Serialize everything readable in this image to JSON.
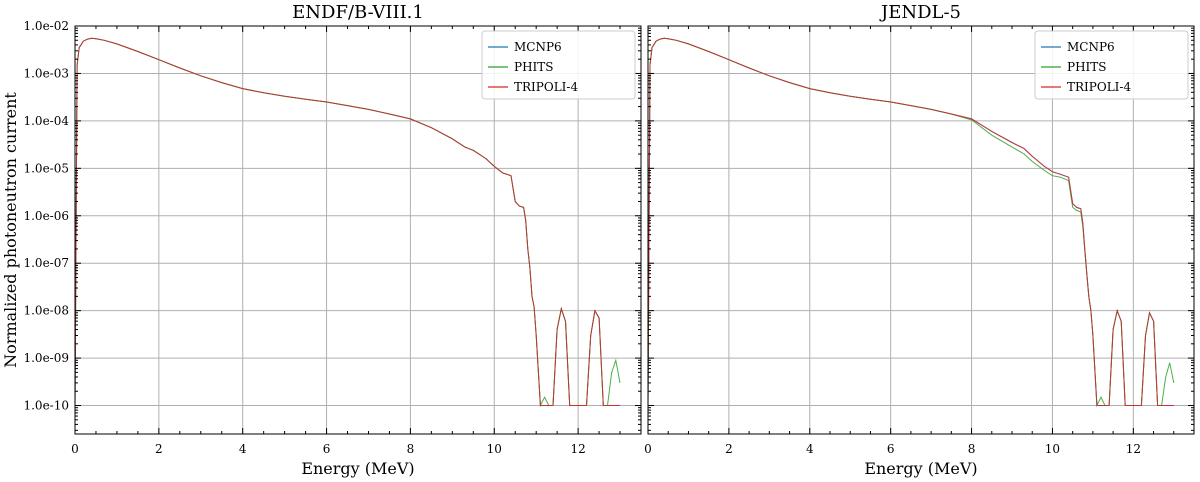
{
  "chart_data": [
    {
      "type": "line",
      "title": "ENDF/B-VIII.1",
      "xlabel": "Energy (MeV)",
      "ylabel": "Normalized photoneutron current",
      "xlim": [
        0,
        13.5
      ],
      "ylim_log10": [
        -10.6,
        -2
      ],
      "yscale": "log",
      "grid": true,
      "legend_position": "top-right",
      "x_ticks": [
        0,
        2,
        4,
        6,
        8,
        10,
        12
      ],
      "x_tick_labels": [
        "0",
        "2",
        "4",
        "6",
        "8",
        "10",
        "12"
      ],
      "y_ticks_log10": [
        -2,
        -3,
        -4,
        -5,
        -6,
        -7,
        -8,
        -9,
        -10
      ],
      "y_tick_labels": [
        "1.0e-02",
        "1.0e-03",
        "1.0e-04",
        "1.0e-05",
        "1.0e-06",
        "1.0e-07",
        "1.0e-08",
        "1.0e-09",
        "1.0e-10"
      ],
      "series": [
        {
          "name": "MCNP6",
          "color": "#1f77b4",
          "x": [
            0.0,
            0.05,
            0.1,
            0.2,
            0.3,
            0.4,
            0.5,
            0.7,
            1.0,
            1.5,
            2.0,
            2.5,
            3.0,
            3.5,
            4.0,
            4.5,
            5.0,
            5.5,
            6.0,
            6.5,
            7.0,
            7.5,
            8.0,
            8.5,
            9.0,
            9.3,
            9.5,
            9.8,
            10.0,
            10.2,
            10.4,
            10.5,
            10.6,
            10.7,
            10.75,
            10.8,
            10.85,
            10.9,
            10.95,
            11.0,
            11.1,
            11.2,
            11.3,
            11.4,
            11.5,
            11.6,
            11.7,
            11.8,
            11.9,
            12.0,
            12.1,
            12.2,
            12.3,
            12.4,
            12.5,
            12.6,
            12.7,
            12.8,
            12.9,
            13.0
          ],
          "y": [
            1e-10,
            0.0015,
            0.0035,
            0.0048,
            0.0053,
            0.0055,
            0.0054,
            0.005,
            0.0042,
            0.0029,
            0.00195,
            0.0013,
            0.00089,
            0.00064,
            0.00048,
            0.00039,
            0.00033,
            0.000285,
            0.00025,
            0.00021,
            0.000175,
            0.00014,
            0.00011,
            7.2e-05,
            4.2e-05,
            2.8e-05,
            2.4e-05,
            1.6e-05,
            1.1e-05,
            8e-06,
            7e-06,
            2e-06,
            1.6e-06,
            1.5e-06,
            8e-07,
            2e-07,
            8e-08,
            2e-08,
            1.2e-08,
            3e-09,
            1e-10,
            1e-10,
            1e-10,
            1e-10,
            4e-09,
            1.1e-08,
            6e-09,
            1e-10,
            1e-10,
            1e-10,
            1e-10,
            1e-10,
            3e-09,
            1e-08,
            7e-09,
            1e-10,
            1e-10,
            1e-10,
            1e-10,
            1e-10
          ]
        },
        {
          "name": "PHITS",
          "color": "#2ca02c",
          "x": [
            0.0,
            0.05,
            0.1,
            0.2,
            0.3,
            0.4,
            0.5,
            0.7,
            1.0,
            1.5,
            2.0,
            2.5,
            3.0,
            3.5,
            4.0,
            4.5,
            5.0,
            5.5,
            6.0,
            6.5,
            7.0,
            7.5,
            8.0,
            8.5,
            9.0,
            9.3,
            9.5,
            9.8,
            10.0,
            10.2,
            10.4,
            10.5,
            10.6,
            10.7,
            10.75,
            10.8,
            10.85,
            10.9,
            10.95,
            11.0,
            11.1,
            11.2,
            11.3,
            11.4,
            11.5,
            11.6,
            11.7,
            11.8,
            11.9,
            12.0,
            12.1,
            12.2,
            12.3,
            12.4,
            12.5,
            12.6,
            12.7,
            12.8,
            12.9,
            13.0
          ],
          "y": [
            1e-10,
            0.0015,
            0.0035,
            0.0048,
            0.0053,
            0.0055,
            0.0054,
            0.005,
            0.0042,
            0.0029,
            0.00195,
            0.0013,
            0.00089,
            0.00064,
            0.00048,
            0.00039,
            0.00033,
            0.000285,
            0.00025,
            0.00021,
            0.000175,
            0.00014,
            0.00011,
            7.2e-05,
            4.2e-05,
            2.8e-05,
            2.4e-05,
            1.6e-05,
            1.1e-05,
            8e-06,
            7e-06,
            2e-06,
            1.6e-06,
            1.5e-06,
            8e-07,
            2e-07,
            8e-08,
            2e-08,
            1.2e-08,
            3e-09,
            1e-10,
            1.5e-10,
            1e-10,
            1e-10,
            4e-09,
            1.1e-08,
            6e-09,
            1e-10,
            1e-10,
            1e-10,
            1e-10,
            1e-10,
            3e-09,
            1e-08,
            7e-09,
            1e-10,
            1e-10,
            5e-10,
            9e-10,
            3e-10
          ]
        },
        {
          "name": "TRIPOLI-4",
          "color": "#d62728",
          "x": [
            0.0,
            0.05,
            0.1,
            0.2,
            0.3,
            0.4,
            0.5,
            0.7,
            1.0,
            1.5,
            2.0,
            2.5,
            3.0,
            3.5,
            4.0,
            4.5,
            5.0,
            5.5,
            6.0,
            6.5,
            7.0,
            7.5,
            8.0,
            8.5,
            9.0,
            9.3,
            9.5,
            9.8,
            10.0,
            10.2,
            10.4,
            10.5,
            10.6,
            10.7,
            10.75,
            10.8,
            10.85,
            10.9,
            10.95,
            11.0,
            11.1,
            11.2,
            11.3,
            11.4,
            11.5,
            11.6,
            11.7,
            11.8,
            11.9,
            12.0,
            12.1,
            12.2,
            12.3,
            12.4,
            12.5,
            12.6,
            12.7,
            12.8,
            12.9,
            13.0
          ],
          "y": [
            1e-10,
            0.0015,
            0.0035,
            0.0048,
            0.0053,
            0.0055,
            0.0054,
            0.005,
            0.0042,
            0.0029,
            0.00195,
            0.0013,
            0.00089,
            0.00064,
            0.00048,
            0.00039,
            0.00033,
            0.000285,
            0.00025,
            0.00021,
            0.000175,
            0.00014,
            0.00011,
            7.2e-05,
            4.2e-05,
            2.8e-05,
            2.4e-05,
            1.6e-05,
            1.1e-05,
            8e-06,
            7e-06,
            2e-06,
            1.6e-06,
            1.5e-06,
            8e-07,
            2e-07,
            8e-08,
            2e-08,
            1.2e-08,
            3e-09,
            1e-10,
            1e-10,
            1e-10,
            1e-10,
            4e-09,
            1.1e-08,
            6e-09,
            1e-10,
            1e-10,
            1e-10,
            1e-10,
            1e-10,
            3e-09,
            1e-08,
            7e-09,
            1e-10,
            1e-10,
            1e-10,
            1e-10,
            1e-10
          ]
        }
      ]
    },
    {
      "type": "line",
      "title": "JENDL-5",
      "xlabel": "Energy (MeV)",
      "ylabel": "",
      "xlim": [
        0,
        13.5
      ],
      "ylim_log10": [
        -10.6,
        -2
      ],
      "yscale": "log",
      "grid": true,
      "legend_position": "top-right",
      "x_ticks": [
        0,
        2,
        4,
        6,
        8,
        10,
        12
      ],
      "x_tick_labels": [
        "0",
        "2",
        "4",
        "6",
        "8",
        "10",
        "12"
      ],
      "y_ticks_log10": [
        -2,
        -3,
        -4,
        -5,
        -6,
        -7,
        -8,
        -9,
        -10
      ],
      "y_tick_labels": [],
      "series": [
        {
          "name": "MCNP6",
          "color": "#1f77b4",
          "x": [
            0.0,
            0.05,
            0.1,
            0.2,
            0.3,
            0.4,
            0.5,
            0.7,
            1.0,
            1.5,
            2.0,
            2.5,
            3.0,
            3.5,
            4.0,
            4.5,
            5.0,
            5.5,
            6.0,
            6.5,
            7.0,
            7.5,
            8.0,
            8.5,
            9.0,
            9.3,
            9.5,
            9.8,
            10.0,
            10.2,
            10.4,
            10.5,
            10.6,
            10.7,
            10.75,
            10.8,
            10.85,
            10.9,
            10.95,
            11.0,
            11.1,
            11.2,
            11.3,
            11.4,
            11.5,
            11.6,
            11.7,
            11.8,
            11.9,
            12.0,
            12.1,
            12.2,
            12.3,
            12.4,
            12.5,
            12.6,
            12.7,
            12.8,
            12.9,
            13.0
          ],
          "y": [
            1e-10,
            0.0015,
            0.0035,
            0.0048,
            0.0053,
            0.0055,
            0.0054,
            0.005,
            0.0042,
            0.0029,
            0.00195,
            0.0013,
            0.00089,
            0.00064,
            0.00048,
            0.00039,
            0.00033,
            0.000285,
            0.00025,
            0.00021,
            0.000175,
            0.00014,
            0.00011,
            6e-05,
            3.5e-05,
            2.6e-05,
            1.8e-05,
            1.1e-05,
            8.5e-06,
            7.5e-06,
            6.5e-06,
            1.8e-06,
            1.5e-06,
            1.4e-06,
            7e-07,
            2e-07,
            6e-08,
            2e-08,
            1e-08,
            3e-09,
            1e-10,
            1e-10,
            1e-10,
            1e-10,
            4e-09,
            1e-08,
            6e-09,
            1e-10,
            1e-10,
            1e-10,
            1e-10,
            1e-10,
            3e-09,
            9e-09,
            6e-09,
            1e-10,
            1e-10,
            1e-10,
            1e-10,
            1e-10
          ]
        },
        {
          "name": "PHITS",
          "color": "#2ca02c",
          "x": [
            0.0,
            0.05,
            0.1,
            0.2,
            0.3,
            0.4,
            0.5,
            0.7,
            1.0,
            1.5,
            2.0,
            2.5,
            3.0,
            3.5,
            4.0,
            4.5,
            5.0,
            5.5,
            6.0,
            6.5,
            7.0,
            7.5,
            8.0,
            8.5,
            9.0,
            9.3,
            9.5,
            9.8,
            10.0,
            10.2,
            10.4,
            10.5,
            10.6,
            10.7,
            10.75,
            10.8,
            10.85,
            10.9,
            10.95,
            11.0,
            11.1,
            11.2,
            11.3,
            11.4,
            11.5,
            11.6,
            11.7,
            11.8,
            11.9,
            12.0,
            12.1,
            12.2,
            12.3,
            12.4,
            12.5,
            12.6,
            12.7,
            12.8,
            12.9,
            13.0
          ],
          "y": [
            1e-10,
            0.0015,
            0.0035,
            0.0048,
            0.0053,
            0.0055,
            0.0054,
            0.005,
            0.0042,
            0.0029,
            0.00195,
            0.0013,
            0.00089,
            0.00064,
            0.00048,
            0.00039,
            0.00033,
            0.000285,
            0.00025,
            0.00021,
            0.000175,
            0.00014,
            0.000105,
            5e-05,
            2.8e-05,
            2e-05,
            1.4e-05,
            9e-06,
            7e-06,
            6.5e-06,
            5.5e-06,
            1.5e-06,
            1.3e-06,
            1.2e-06,
            6e-07,
            1.8e-07,
            6e-08,
            2e-08,
            1e-08,
            3e-09,
            1e-10,
            1.5e-10,
            1e-10,
            1e-10,
            4e-09,
            1e-08,
            6e-09,
            1e-10,
            1e-10,
            1e-10,
            1e-10,
            1e-10,
            3e-09,
            9e-09,
            6e-09,
            1e-10,
            1e-10,
            4e-10,
            8e-10,
            3e-10
          ]
        },
        {
          "name": "TRIPOLI-4",
          "color": "#d62728",
          "x": [
            0.0,
            0.05,
            0.1,
            0.2,
            0.3,
            0.4,
            0.5,
            0.7,
            1.0,
            1.5,
            2.0,
            2.5,
            3.0,
            3.5,
            4.0,
            4.5,
            5.0,
            5.5,
            6.0,
            6.5,
            7.0,
            7.5,
            8.0,
            8.5,
            9.0,
            9.3,
            9.5,
            9.8,
            10.0,
            10.2,
            10.4,
            10.5,
            10.6,
            10.7,
            10.75,
            10.8,
            10.85,
            10.9,
            10.95,
            11.0,
            11.1,
            11.2,
            11.3,
            11.4,
            11.5,
            11.6,
            11.7,
            11.8,
            11.9,
            12.0,
            12.1,
            12.2,
            12.3,
            12.4,
            12.5,
            12.6,
            12.7,
            12.8,
            12.9,
            13.0
          ],
          "y": [
            1e-10,
            0.0015,
            0.0035,
            0.0048,
            0.0053,
            0.0055,
            0.0054,
            0.005,
            0.0042,
            0.0029,
            0.00195,
            0.0013,
            0.00089,
            0.00064,
            0.00048,
            0.00039,
            0.00033,
            0.000285,
            0.00025,
            0.00021,
            0.000175,
            0.00014,
            0.00011,
            6e-05,
            3.5e-05,
            2.6e-05,
            1.8e-05,
            1.1e-05,
            8.5e-06,
            7.5e-06,
            6.5e-06,
            1.8e-06,
            1.5e-06,
            1.4e-06,
            7e-07,
            2e-07,
            6e-08,
            2e-08,
            1e-08,
            3e-09,
            1e-10,
            1e-10,
            1e-10,
            1e-10,
            4e-09,
            1e-08,
            6e-09,
            1e-10,
            1e-10,
            1e-10,
            1e-10,
            1e-10,
            3e-09,
            9e-09,
            6e-09,
            1e-10,
            1e-10,
            1e-10,
            1e-10,
            1e-10
          ]
        }
      ]
    }
  ]
}
